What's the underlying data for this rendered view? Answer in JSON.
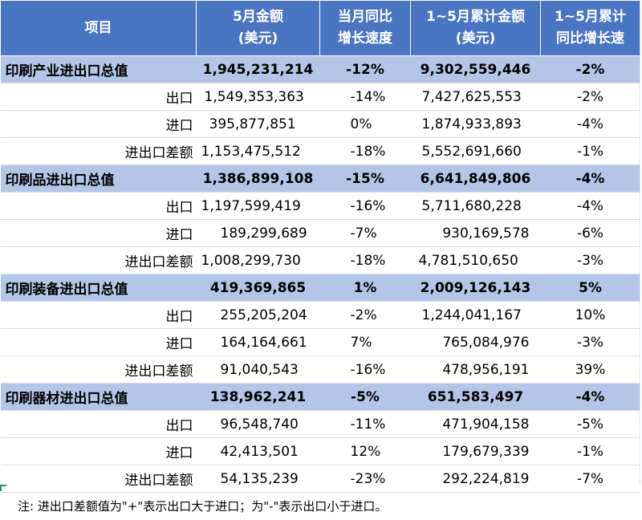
{
  "header": {
    "col0": "项目",
    "col1_line1": "5月金额",
    "col1_line2": "(美元)",
    "col2_line1": "当月同比",
    "col2_line2": "增长速度",
    "col3_line1": "1~5月累计金额",
    "col3_line2": "(美元)",
    "col4_line1": "1~5月累计",
    "col4_line2": "同比增长速"
  },
  "groups": [
    {
      "total": {
        "name": "印刷产业进出口总值",
        "amount": "1,945,231,214",
        "yoy": "-12%",
        "cum": "9,302,559,446",
        "cum_yoy": "-2%"
      },
      "rows": [
        {
          "name": "出口",
          "amount": "1,549,353,363",
          "yoy": "-14%",
          "cum": "7,427,625,553",
          "cum_yoy": "-2%"
        },
        {
          "name": "进口",
          "amount": "395,877,851",
          "yoy": "0%",
          "cum": "1,874,933,893",
          "cum_yoy": "-4%"
        },
        {
          "name": "进出口差额",
          "amount": "1,153,475,512",
          "yoy": "-18%",
          "cum": "5,552,691,660",
          "cum_yoy": "-1%"
        }
      ]
    },
    {
      "total": {
        "name": "印刷品进出口总值",
        "amount": "1,386,899,108",
        "yoy": "-15%",
        "cum": "6,641,849,806",
        "cum_yoy": "-4%"
      },
      "rows": [
        {
          "name": "出口",
          "amount": "1,197,599,419",
          "yoy": "-16%",
          "cum": "5,711,680,228",
          "cum_yoy": "-4%"
        },
        {
          "name": "进口",
          "amount": "189,299,689",
          "yoy": "-7%",
          "cum": "930,169,578",
          "cum_yoy": "-6%"
        },
        {
          "name": "进出口差额",
          "amount": "1,008,299,730",
          "yoy": "-18%",
          "cum": "4,781,510,650",
          "cum_yoy": "-3%"
        }
      ]
    },
    {
      "total": {
        "name": "印刷装备进出口总值",
        "amount": "419,369,865",
        "yoy": "1%",
        "cum": "2,009,126,143",
        "cum_yoy": "5%"
      },
      "rows": [
        {
          "name": "出口",
          "amount": "255,205,204",
          "yoy": "-2%",
          "cum": "1,244,041,167",
          "cum_yoy": "10%"
        },
        {
          "name": "进口",
          "amount": "164,164,661",
          "yoy": "7%",
          "cum": "765,084,976",
          "cum_yoy": "-3%"
        },
        {
          "name": "进出口差额",
          "amount": "91,040,543",
          "yoy": "-16%",
          "cum": "478,956,191",
          "cum_yoy": "39%"
        }
      ]
    },
    {
      "total": {
        "name": "印刷器材进出口总值",
        "amount": "138,962,241",
        "yoy": "-5%",
        "cum": "651,583,497",
        "cum_yoy": "-4%"
      },
      "rows": [
        {
          "name": "出口",
          "amount": "96,548,740",
          "yoy": "-11%",
          "cum": "471,904,158",
          "cum_yoy": "-5%"
        },
        {
          "name": "进口",
          "amount": "42,413,501",
          "yoy": "12%",
          "cum": "179,679,339",
          "cum_yoy": "-1%"
        },
        {
          "name": "进出口差额",
          "amount": "54,135,239",
          "yoy": "-23%",
          "cum": "292,224,819",
          "cum_yoy": "-7%"
        }
      ]
    }
  ],
  "note": "注: 进出口差额值为\"+\"表示出口大于进口；为\"-\"表示出口小于进口。"
}
